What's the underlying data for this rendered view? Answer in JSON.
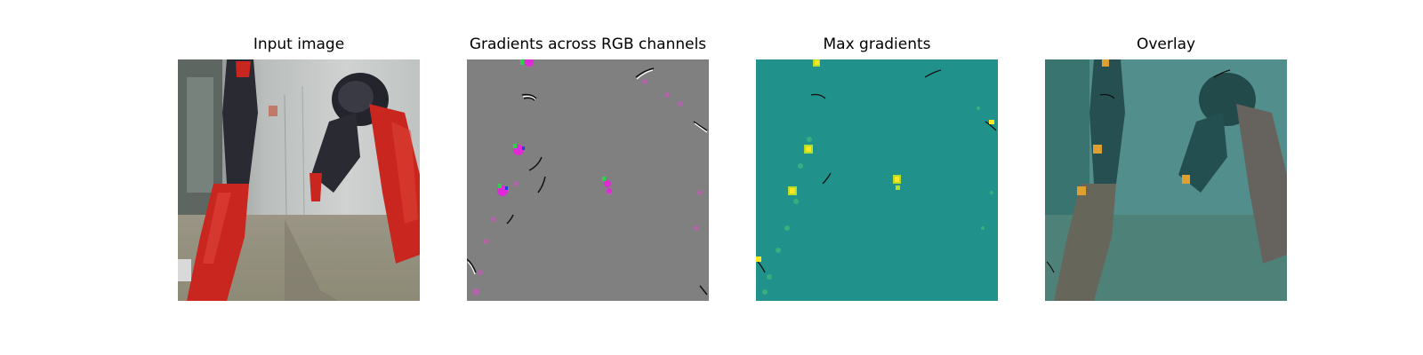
{
  "panels": [
    {
      "title": "Input image"
    },
    {
      "title": "Gradients across RGB channels"
    },
    {
      "title": "Max gradients"
    },
    {
      "title": "Overlay"
    }
  ],
  "colors": {
    "gradient_bg": "#808080",
    "max_gradient_bg": "#21918c",
    "overlay_tint": "#2a8f8a",
    "robot_red": "#c8261e",
    "robot_dark": "#2a2a33"
  }
}
